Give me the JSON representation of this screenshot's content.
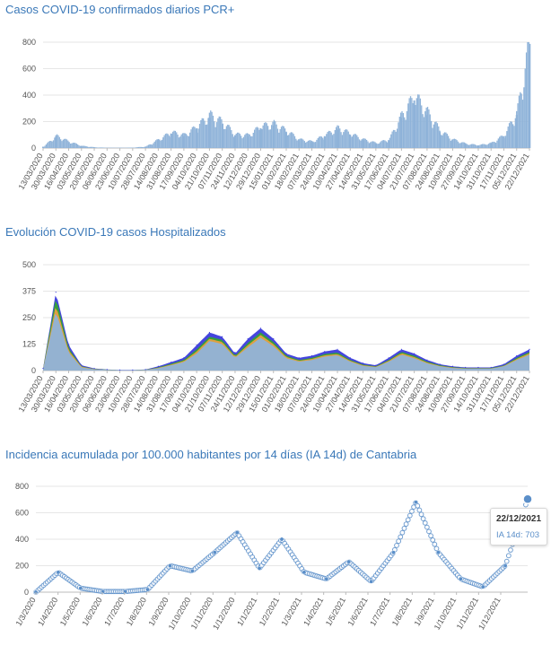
{
  "chart_data": [
    {
      "type": "bar",
      "title": "Casos COVID-19 confirmados diarios PCR+",
      "ylim": [
        0,
        800
      ],
      "yticks": [
        "0",
        "200",
        "400",
        "600",
        "800"
      ],
      "xtick_labels": [
        "13/03/2020",
        "30/03/2020",
        "16/04/2020",
        "03/05/2020",
        "20/05/2020",
        "06/06/2020",
        "23/06/2020",
        "10/07/2020",
        "28/07/2020",
        "14/08/2020",
        "31/08/2020",
        "17/09/2020",
        "04/10/2020",
        "21/10/2020",
        "07/11/2020",
        "24/11/2020",
        "12/12/2020",
        "29/12/2020",
        "15/01/2021",
        "01/02/2021",
        "18/02/2021",
        "07/03/2021",
        "24/03/2021",
        "10/04/2021",
        "27/04/2021",
        "14/05/2021",
        "31/05/2021",
        "17/06/2021",
        "04/07/2021",
        "21/07/2021",
        "07/08/2021",
        "24/08/2021",
        "10/09/2021",
        "27/09/2021",
        "14/10/2021",
        "31/10/2021",
        "17/11/2021",
        "05/12/2021",
        "22/12/2021"
      ],
      "x": [
        "13/03/2020",
        "30/03/2020",
        "16/04/2020",
        "03/05/2020",
        "20/05/2020",
        "06/06/2020",
        "23/06/2020",
        "10/07/2020",
        "28/07/2020",
        "14/08/2020",
        "31/08/2020",
        "17/09/2020",
        "04/10/2020",
        "21/10/2020",
        "07/11/2020",
        "24/11/2020",
        "12/12/2020",
        "29/12/2020",
        "15/01/2021",
        "01/02/2021",
        "18/02/2021",
        "07/03/2021",
        "24/03/2021",
        "10/04/2021",
        "27/04/2021",
        "14/05/2021",
        "31/05/2021",
        "17/06/2021",
        "04/07/2021",
        "21/07/2021",
        "07/08/2021",
        "24/08/2021",
        "10/09/2021",
        "27/09/2021",
        "14/10/2021",
        "31/10/2021",
        "17/11/2021",
        "05/12/2021",
        "22/12/2021"
      ],
      "values": [
        10,
        85,
        45,
        15,
        5,
        2,
        2,
        3,
        10,
        60,
        110,
        90,
        150,
        230,
        180,
        95,
        90,
        150,
        170,
        120,
        60,
        45,
        90,
        140,
        100,
        60,
        35,
        60,
        230,
        360,
        250,
        120,
        60,
        30,
        20,
        35,
        90,
        250,
        735
      ],
      "bar_color": "#8fb3d9"
    },
    {
      "type": "area",
      "title": "Evolución COVID-19 casos  Hospitalizados",
      "ylim": [
        0,
        500
      ],
      "yticks": [
        "0",
        "125",
        "250",
        "375",
        "500"
      ],
      "xtick_labels": [
        "13/03/2020",
        "30/03/2020",
        "16/04/2020",
        "03/05/2020",
        "20/05/2020",
        "06/06/2020",
        "23/06/2020",
        "10/07/2020",
        "28/07/2020",
        "14/08/2020",
        "31/08/2020",
        "17/09/2020",
        "04/10/2020",
        "21/10/2020",
        "07/11/2020",
        "24/11/2020",
        "12/12/2020",
        "29/12/2020",
        "15/01/2021",
        "01/02/2021",
        "18/02/2021",
        "07/03/2021",
        "24/03/2021",
        "10/04/2021",
        "27/04/2021",
        "14/05/2021",
        "31/05/2021",
        "17/06/2021",
        "04/07/2021",
        "21/07/2021",
        "07/08/2021",
        "24/08/2021",
        "10/09/2021",
        "27/09/2021",
        "14/10/2021",
        "31/10/2021",
        "17/11/2021",
        "05/12/2021",
        "22/12/2021"
      ],
      "x": [
        "13/03/2020",
        "30/03/2020",
        "16/04/2020",
        "03/05/2020",
        "20/05/2020",
        "06/06/2020",
        "23/06/2020",
        "10/07/2020",
        "28/07/2020",
        "14/08/2020",
        "31/08/2020",
        "17/09/2020",
        "04/10/2020",
        "21/10/2020",
        "07/11/2020",
        "24/11/2020",
        "12/12/2020",
        "29/12/2020",
        "15/01/2021",
        "01/02/2021",
        "18/02/2021",
        "07/03/2021",
        "24/03/2021",
        "10/04/2021",
        "27/04/2021",
        "14/05/2021",
        "31/05/2021",
        "17/06/2021",
        "04/07/2021",
        "21/07/2021",
        "07/08/2021",
        "24/08/2021",
        "10/09/2021",
        "27/09/2021",
        "14/10/2021",
        "31/10/2021",
        "17/11/2021",
        "05/12/2021",
        "22/12/2021"
      ],
      "series": [
        {
          "values": [
            10,
            370,
            120,
            25,
            10,
            5,
            3,
            3,
            5,
            20,
            40,
            60,
            120,
            180,
            160,
            80,
            150,
            200,
            150,
            80,
            60,
            70,
            90,
            100,
            60,
            35,
            25,
            60,
            100,
            80,
            50,
            30,
            20,
            15,
            15,
            15,
            30,
            70,
            100
          ],
          "color": "#3b3bdc"
        },
        {
          "values": [
            8,
            345,
            105,
            20,
            8,
            4,
            2,
            2,
            4,
            15,
            32,
            50,
            100,
            160,
            145,
            70,
            130,
            180,
            135,
            70,
            50,
            60,
            78,
            85,
            50,
            28,
            20,
            50,
            88,
            70,
            42,
            25,
            16,
            12,
            12,
            12,
            24,
            60,
            88
          ],
          "color": "#35a335"
        },
        {
          "values": [
            7,
            310,
            95,
            18,
            7,
            3,
            2,
            2,
            3,
            13,
            28,
            45,
            90,
            150,
            135,
            65,
            120,
            168,
            125,
            64,
            46,
            55,
            72,
            78,
            46,
            25,
            18,
            46,
            82,
            64,
            38,
            22,
            14,
            10,
            10,
            10,
            22,
            55,
            82
          ],
          "color": "#e8a040"
        },
        {
          "values": [
            6,
            280,
            85,
            15,
            6,
            3,
            2,
            2,
            3,
            11,
            25,
            40,
            80,
            140,
            125,
            60,
            110,
            155,
            115,
            58,
            42,
            50,
            66,
            72,
            42,
            22,
            16,
            42,
            75,
            58,
            34,
            20,
            12,
            9,
            9,
            9,
            20,
            50,
            75
          ],
          "color": "#8fb3d9"
        }
      ]
    },
    {
      "type": "scatter",
      "title": "Incidencia acumulada por 100.000 habitantes por 14 días (IA 14d) de Cantabria",
      "ylim": [
        0,
        800
      ],
      "yticks": [
        "0",
        "200",
        "400",
        "600",
        "800"
      ],
      "xtick_labels": [
        "1/3/2020",
        "1/4/2020",
        "1/5/2020",
        "1/6/2020",
        "1/7/2020",
        "1/8/2020",
        "1/9/2020",
        "1/10/2020",
        "1/11/2020",
        "1/12/2020",
        "1/1/2021",
        "1/2/2021",
        "1/3/2021",
        "1/4/2021",
        "1/5/2021",
        "1/6/2021",
        "1/7/2021",
        "1/8/2021",
        "1/9/2021",
        "1/10/2021",
        "1/11/2021",
        "1/12/2021"
      ],
      "x": [
        "1/3/2020",
        "1/4/2020",
        "1/5/2020",
        "1/6/2020",
        "1/7/2020",
        "1/8/2020",
        "1/9/2020",
        "1/10/2020",
        "1/11/2020",
        "1/12/2020",
        "1/1/2021",
        "1/2/2021",
        "1/3/2021",
        "1/4/2021",
        "1/5/2021",
        "1/6/2021",
        "1/7/2021",
        "1/8/2021",
        "1/9/2021",
        "1/10/2021",
        "1/11/2021",
        "1/12/2021",
        "22/12/2021"
      ],
      "values": [
        0,
        150,
        30,
        5,
        5,
        20,
        200,
        160,
        300,
        450,
        180,
        400,
        150,
        100,
        230,
        80,
        300,
        680,
        300,
        100,
        40,
        200,
        703
      ],
      "point_color": "#5b8fc9",
      "tooltip": {
        "date": "22/12/2021",
        "label": "IA 14d: 703"
      }
    }
  ]
}
